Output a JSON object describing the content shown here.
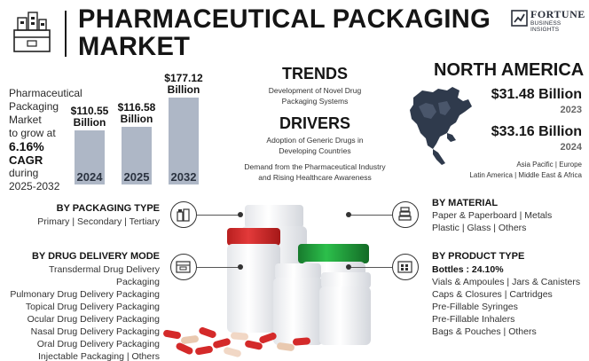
{
  "header": {
    "title_line1": "PHARMACEUTICAL PACKAGING",
    "title_line2": "MARKET",
    "logo_word": "FORTUNE",
    "logo_sub": "BUSINESS INSIGHTS"
  },
  "summary": {
    "line1": "Pharmaceutical",
    "line2": "Packaging Market",
    "line3": "to grow at",
    "cagr_value": "6.16%",
    "cagr_label": "CAGR",
    "line4": "during",
    "period": "2025-2032"
  },
  "chart_data": {
    "type": "bar",
    "categories": [
      "2024",
      "2025",
      "2032"
    ],
    "values": [
      110.55,
      116.58,
      177.12
    ],
    "labels": [
      "$110.55 Billion",
      "$116.58 Billion",
      "$177.12 Billion"
    ],
    "value_lines": [
      [
        "$110.55",
        "Billion"
      ],
      [
        "$116.58",
        "Billion"
      ],
      [
        "$177.12",
        "Billion"
      ]
    ]
  },
  "trends": {
    "heading": "TRENDS",
    "text_line1": "Development of Novel Drug",
    "text_line2": "Packaging Systems"
  },
  "drivers": {
    "heading": "DRIVERS",
    "item1_line1": "Adoption of Generic Drugs in",
    "item1_line2": "Developing Countries",
    "item2_line1": "Demand from the Pharmaceutical Industry",
    "item2_line2": "and Rising Healthcare Awareness"
  },
  "north_america": {
    "heading": "NORTH AMERICA",
    "value1": "$31.48 Billion",
    "year1": "2023",
    "value2": "$33.16 Billion",
    "year2": "2024",
    "regions_line1": "Asia Pacific  |  Europe",
    "regions_line2": "Latin America  |  Middle East & Africa"
  },
  "packaging_type": {
    "heading": "BY PACKAGING TYPE",
    "items": "Primary  |  Secondary  |  Tertiary"
  },
  "drug_delivery": {
    "heading": "BY DRUG DELIVERY MODE",
    "items": [
      "Transdermal Drug Delivery Packaging",
      "Pulmonary Drug Delivery Packaging",
      "Topical Drug Delivery Packaging",
      "Ocular Drug Delivery Packaging",
      "Nasal Drug Delivery Packaging",
      "Oral Drug Delivery Packaging",
      "Injectable Packaging  |  Others"
    ]
  },
  "material": {
    "heading": "BY MATERIAL",
    "line1": "Paper & Paperboard  |  Metals",
    "line2": "Plastic  |  Glass  |  Others"
  },
  "product_type": {
    "heading": "BY PRODUCT TYPE",
    "highlight": "Bottles : 24.10%",
    "items": [
      "Vials & Ampoules  |  Jars & Canisters",
      "Caps & Closures  |  Cartridges",
      "Pre-Fillable Syringes",
      "Pre-Fillable Inhalers",
      "Bags & Pouches  |  Others"
    ]
  },
  "colors": {
    "bar": "#aeb7c6",
    "bottle_red_cap": "#d42a2a",
    "bottle_green_cap": "#1f9c3a",
    "text_dark": "#151515"
  },
  "icons": [
    "factory-box-icon",
    "fortune-logo-icon",
    "north-america-map-icon",
    "packaging-icon",
    "delivery-box-icon",
    "material-stack-icon",
    "product-type-icon"
  ]
}
